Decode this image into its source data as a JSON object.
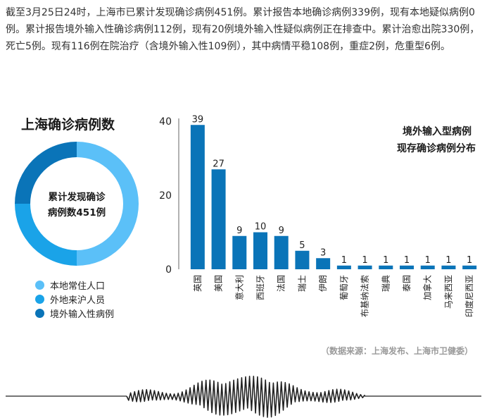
{
  "intro_text": "截至3月25日24时，上海市已累计发现确诊病例451例。累计报告本地确诊病例339例，现有本地疑似病例0例。累计报告境外输入性确诊病例112例，现有20例境外输入性疑似病例正在排查中。累计治愈出院330例，死亡5例。现有116例在院治疗（含境外输入性109例），其中病情平稳108例，重症2例，危重型6例。",
  "source_text": "（数据来源：上海发布、上海市卫健委）",
  "colors": {
    "local": "#5bc0f8",
    "visitor": "#1aa3e8",
    "imported": "#0a74b8",
    "bar": "#0a74b8"
  },
  "chart_data": [
    {
      "type": "pie",
      "title": "上海确诊病例数",
      "center_label_line1": "累计发现确诊",
      "center_label_line2": "病例数451例",
      "total": 451,
      "categories": [
        "本地常住人口",
        "外地来沪人员",
        "境外输入性病例"
      ],
      "values": [
        null,
        null,
        112
      ],
      "shares_estimated": [
        0.5,
        0.25,
        0.25
      ]
    },
    {
      "type": "bar",
      "title_line1": "境外输入型病例",
      "title_line2": "现存确诊病例分布",
      "categories": [
        "英国",
        "美国",
        "意大利",
        "西班牙",
        "法国",
        "瑞士",
        "伊朗",
        "葡萄牙",
        "布基纳法索",
        "瑞典",
        "泰国",
        "加拿大",
        "马来西亚",
        "印度尼西亚"
      ],
      "values": [
        39,
        27,
        9,
        10,
        9,
        5,
        3,
        1,
        1,
        1,
        1,
        1,
        1,
        1
      ],
      "ylim": [
        0,
        40
      ],
      "yticks": [
        0,
        20,
        40
      ],
      "grid": false
    }
  ]
}
